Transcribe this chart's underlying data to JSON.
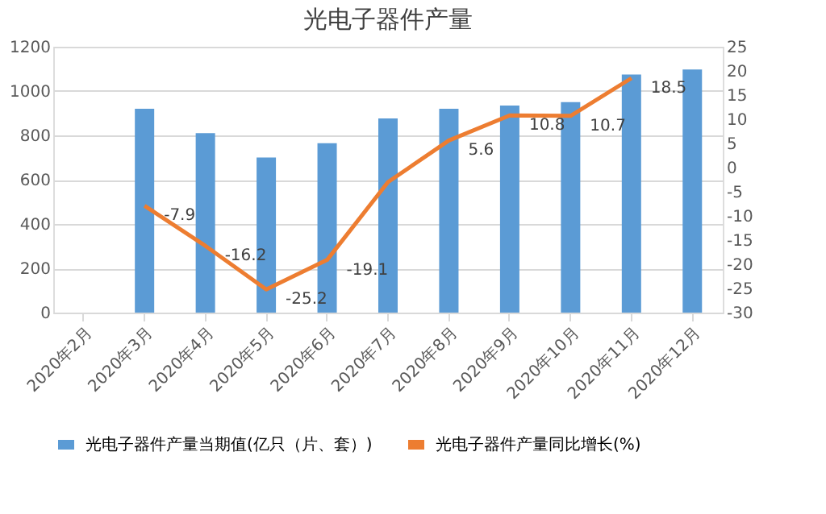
{
  "chart_data": {
    "type": "bar",
    "title": "光电子器件产量",
    "categories": [
      "2020年2月",
      "2020年3月",
      "2020年4月",
      "2020年5月",
      "2020年6月",
      "2020年7月",
      "2020年8月",
      "2020年9月",
      "2020年10月",
      "2020年11月",
      "2020年12月"
    ],
    "series": [
      {
        "name": "光电子器件产量当期值(亿只（片、套）)",
        "color": "#5b9bd5",
        "values": [
          null,
          920,
          810,
          700,
          765,
          876,
          920,
          935,
          950,
          1075,
          1097
        ]
      },
      {
        "name": "光电子器件产量同比增长(%)",
        "type": "line",
        "axis": "y2",
        "color": "#ed7d31",
        "values": [
          null,
          -7.9,
          -16.2,
          -25.2,
          -19.1,
          -3,
          5.6,
          10.8,
          10.7,
          18.5,
          null
        ],
        "value_labels": [
          null,
          "-7.9",
          "-16.2",
          "-25.2",
          "-19.1",
          null,
          "5.6",
          "10.8",
          "10.7",
          "18.5",
          null
        ]
      }
    ],
    "ylim": [
      0,
      1200
    ],
    "yticks": [
      0,
      200,
      400,
      600,
      800,
      1000,
      1200
    ],
    "y2lim": [
      -30,
      25
    ],
    "y2ticks": [
      -30,
      -25,
      -20,
      -15,
      -10,
      -5,
      0,
      5,
      10,
      15,
      20,
      25
    ],
    "grid": "y",
    "legend": "bottom",
    "marker": "none"
  }
}
